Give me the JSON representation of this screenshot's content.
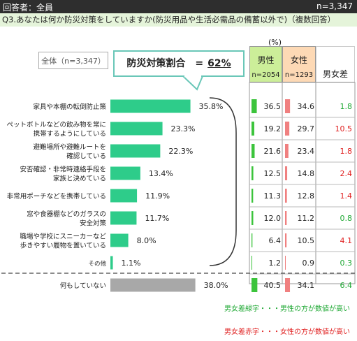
{
  "header": {
    "respondents": "回答者：全員",
    "n": "n=3,347"
  },
  "question": "Q3.あなたは何か防災対策をしていますか(防災用品や生活必需品の備蓄以外で)（複数回答）",
  "total_label": "全体（n=3,347）",
  "callout": {
    "label": "防災対策割合　=",
    "value": "62%"
  },
  "table": {
    "unit": "(%)",
    "male": {
      "label": "男性",
      "n": "n=2054"
    },
    "female": {
      "label": "女性",
      "n": "n=1293"
    },
    "diff": {
      "label": "男女差"
    }
  },
  "legend_notes": {
    "green": "男女差緑字・・・男性の方が数値が高い",
    "red": "男女差赤字・・・女性の方が数値が高い"
  },
  "colors": {
    "bar": "#2ecc8a",
    "none_bar": "#a8a8a8",
    "male_bar": "#3cc43c",
    "female_bar": "#f08080",
    "diff_green": "#1ea833",
    "diff_red": "#e02020"
  },
  "chart_data": {
    "type": "bar",
    "orientation": "horizontal",
    "categories": [
      [
        "家具や本棚の転倒防止策"
      ],
      [
        "ペットボトルなどの飲み物を常に",
        "携帯するようにしている"
      ],
      [
        "避難場所や避難ルートを",
        "確認している"
      ],
      [
        "安否確認・非常時連絡手段を",
        "家族と決めている"
      ],
      [
        "非常用ポーチなどを携帯している"
      ],
      [
        "窓や食器棚などのガラスの",
        "安全対策"
      ],
      [
        "職場や学校にスニーカーなど",
        "歩きやすい履物を置いている"
      ],
      [
        "その他"
      ],
      [
        "何もしていない"
      ]
    ],
    "values": [
      35.8,
      23.3,
      22.3,
      13.4,
      11.9,
      11.7,
      8.0,
      1.1,
      38.0
    ],
    "value_labels": [
      "35.8%",
      "23.3%",
      "22.3%",
      "13.4%",
      "11.9%",
      "11.7%",
      "8.0%",
      "1.1%",
      "38.0%"
    ],
    "male": [
      "36.5",
      "19.2",
      "21.6",
      "12.5",
      "11.3",
      "12.0",
      "6.4",
      "1.2",
      "40.5"
    ],
    "female": [
      "34.6",
      "29.7",
      "23.4",
      "14.8",
      "12.8",
      "11.2",
      "10.5",
      "0.9",
      "34.1"
    ],
    "diff": [
      "1.8",
      "10.5",
      "1.8",
      "2.4",
      "1.4",
      "0.8",
      "4.1",
      "0.3",
      "6.4"
    ],
    "diff_color": [
      "green",
      "red",
      "red",
      "red",
      "red",
      "green",
      "red",
      "green",
      "green"
    ]
  }
}
